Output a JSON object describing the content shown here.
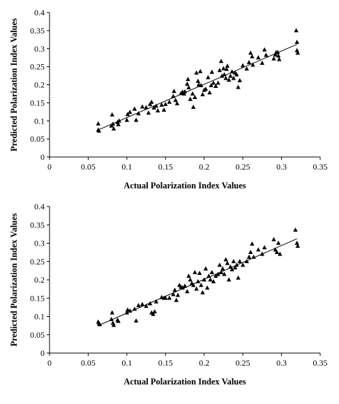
{
  "chart_data": [
    {
      "type": "scatter",
      "title": "",
      "xlabel": "Actual Polarization Index Values",
      "ylabel": "Predicted Polarization Index Values",
      "xlim": [
        0,
        0.35
      ],
      "ylim": [
        0,
        0.4
      ],
      "xticks": [
        "0",
        "0.05",
        "0.1",
        "0.15",
        "0.2",
        "0.25",
        "0.3",
        "0.35"
      ],
      "yticks": [
        "0",
        "0.05",
        "0.1",
        "0.15",
        "0.2",
        "0.25",
        "0.3",
        "0.35",
        "0.4"
      ],
      "marker": "triangle",
      "grid": false,
      "trendline": {
        "x": [
          0.063,
          0.32
        ],
        "y": [
          0.075,
          0.312
        ]
      },
      "series": [
        {
          "points": [
            [
              0.063,
              0.092
            ],
            [
              0.063,
              0.075
            ],
            [
              0.064,
              0.072
            ],
            [
              0.08,
              0.086
            ],
            [
              0.081,
              0.117
            ],
            [
              0.082,
              0.091
            ],
            [
              0.083,
              0.078
            ],
            [
              0.088,
              0.096
            ],
            [
              0.089,
              0.09
            ],
            [
              0.09,
              0.1
            ],
            [
              0.1,
              0.102
            ],
            [
              0.101,
              0.118
            ],
            [
              0.104,
              0.124
            ],
            [
              0.11,
              0.133
            ],
            [
              0.112,
              0.102
            ],
            [
              0.115,
              0.12
            ],
            [
              0.12,
              0.139
            ],
            [
              0.125,
              0.137
            ],
            [
              0.128,
              0.122
            ],
            [
              0.13,
              0.146
            ],
            [
              0.132,
              0.152
            ],
            [
              0.135,
              0.136
            ],
            [
              0.138,
              0.141
            ],
            [
              0.14,
              0.128
            ],
            [
              0.145,
              0.144
            ],
            [
              0.148,
              0.13
            ],
            [
              0.15,
              0.146
            ],
            [
              0.155,
              0.152
            ],
            [
              0.16,
              0.168
            ],
            [
              0.161,
              0.182
            ],
            [
              0.163,
              0.157
            ],
            [
              0.165,
              0.148
            ],
            [
              0.17,
              0.176
            ],
            [
              0.172,
              0.18
            ],
            [
              0.174,
              0.175
            ],
            [
              0.175,
              0.181
            ],
            [
              0.178,
              0.202
            ],
            [
              0.179,
              0.215
            ],
            [
              0.18,
              0.192
            ],
            [
              0.182,
              0.16
            ],
            [
              0.185,
              0.175
            ],
            [
              0.186,
              0.138
            ],
            [
              0.188,
              0.165
            ],
            [
              0.19,
              0.233
            ],
            [
              0.192,
              0.21
            ],
            [
              0.193,
              0.2
            ],
            [
              0.195,
              0.237
            ],
            [
              0.196,
              0.198
            ],
            [
              0.198,
              0.173
            ],
            [
              0.2,
              0.185
            ],
            [
              0.202,
              0.188
            ],
            [
              0.205,
              0.22
            ],
            [
              0.207,
              0.178
            ],
            [
              0.209,
              0.198
            ],
            [
              0.21,
              0.235
            ],
            [
              0.212,
              0.205
            ],
            [
              0.215,
              0.196
            ],
            [
              0.218,
              0.205
            ],
            [
              0.22,
              0.24
            ],
            [
              0.222,
              0.265
            ],
            [
              0.223,
              0.224
            ],
            [
              0.225,
              0.245
            ],
            [
              0.226,
              0.228
            ],
            [
              0.228,
              0.218
            ],
            [
              0.229,
              0.243
            ],
            [
              0.23,
              0.252
            ],
            [
              0.232,
              0.213
            ],
            [
              0.234,
              0.224
            ],
            [
              0.236,
              0.236
            ],
            [
              0.238,
              0.218
            ],
            [
              0.24,
              0.233
            ],
            [
              0.242,
              0.228
            ],
            [
              0.244,
              0.193
            ],
            [
              0.246,
              0.212
            ],
            [
              0.25,
              0.253
            ],
            [
              0.255,
              0.244
            ],
            [
              0.258,
              0.262
            ],
            [
              0.26,
              0.288
            ],
            [
              0.262,
              0.278
            ],
            [
              0.263,
              0.255
            ],
            [
              0.27,
              0.275
            ],
            [
              0.275,
              0.26
            ],
            [
              0.278,
              0.297
            ],
            [
              0.28,
              0.282
            ],
            [
              0.29,
              0.272
            ],
            [
              0.292,
              0.283
            ],
            [
              0.293,
              0.289
            ],
            [
              0.295,
              0.29
            ],
            [
              0.296,
              0.28
            ],
            [
              0.297,
              0.27
            ],
            [
              0.319,
              0.35
            ],
            [
              0.32,
              0.318
            ],
            [
              0.32,
              0.295
            ],
            [
              0.321,
              0.288
            ]
          ]
        }
      ]
    },
    {
      "type": "scatter",
      "title": "",
      "xlabel": "Actual Polarization Index Values",
      "ylabel": "Predicted Polarization Index Values",
      "xlim": [
        0,
        0.35
      ],
      "ylim": [
        0,
        0.4
      ],
      "xticks": [
        "0",
        "0.05",
        "0.1",
        "0.15",
        "0.2",
        "0.25",
        "0.3",
        "0.35"
      ],
      "yticks": [
        "0",
        "0.05",
        "0.1",
        "0.15",
        "0.2",
        "0.25",
        "0.3",
        "0.35",
        "0.4"
      ],
      "marker": "triangle",
      "grid": false,
      "trendline": {
        "x": [
          0.063,
          0.32
        ],
        "y": [
          0.075,
          0.312
        ]
      },
      "series": [
        {
          "points": [
            [
              0.063,
              0.085
            ],
            [
              0.064,
              0.08
            ],
            [
              0.065,
              0.078
            ],
            [
              0.08,
              0.092
            ],
            [
              0.081,
              0.11
            ],
            [
              0.082,
              0.082
            ],
            [
              0.083,
              0.076
            ],
            [
              0.088,
              0.09
            ],
            [
              0.089,
              0.087
            ],
            [
              0.1,
              0.11
            ],
            [
              0.101,
              0.118
            ],
            [
              0.104,
              0.115
            ],
            [
              0.11,
              0.12
            ],
            [
              0.112,
              0.088
            ],
            [
              0.115,
              0.13
            ],
            [
              0.12,
              0.133
            ],
            [
              0.125,
              0.128
            ],
            [
              0.13,
              0.135
            ],
            [
              0.132,
              0.11
            ],
            [
              0.134,
              0.106
            ],
            [
              0.136,
              0.113
            ],
            [
              0.138,
              0.14
            ],
            [
              0.145,
              0.152
            ],
            [
              0.148,
              0.15
            ],
            [
              0.15,
              0.15
            ],
            [
              0.155,
              0.15
            ],
            [
              0.16,
              0.16
            ],
            [
              0.162,
              0.172
            ],
            [
              0.164,
              0.144
            ],
            [
              0.166,
              0.158
            ],
            [
              0.168,
              0.185
            ],
            [
              0.17,
              0.18
            ],
            [
              0.172,
              0.178
            ],
            [
              0.175,
              0.183
            ],
            [
              0.178,
              0.168
            ],
            [
              0.18,
              0.21
            ],
            [
              0.182,
              0.2
            ],
            [
              0.184,
              0.19
            ],
            [
              0.186,
              0.185
            ],
            [
              0.188,
              0.22
            ],
            [
              0.19,
              0.175
            ],
            [
              0.192,
              0.195
            ],
            [
              0.194,
              0.218
            ],
            [
              0.196,
              0.185
            ],
            [
              0.198,
              0.165
            ],
            [
              0.2,
              0.2
            ],
            [
              0.202,
              0.23
            ],
            [
              0.204,
              0.178
            ],
            [
              0.206,
              0.21
            ],
            [
              0.208,
              0.2
            ],
            [
              0.21,
              0.22
            ],
            [
              0.212,
              0.195
            ],
            [
              0.215,
              0.21
            ],
            [
              0.218,
              0.215
            ],
            [
              0.22,
              0.24
            ],
            [
              0.222,
              0.22
            ],
            [
              0.224,
              0.23
            ],
            [
              0.226,
              0.215
            ],
            [
              0.228,
              0.255
            ],
            [
              0.23,
              0.245
            ],
            [
              0.232,
              0.2
            ],
            [
              0.234,
              0.235
            ],
            [
              0.236,
              0.228
            ],
            [
              0.238,
              0.25
            ],
            [
              0.24,
              0.233
            ],
            [
              0.242,
              0.24
            ],
            [
              0.244,
              0.205
            ],
            [
              0.246,
              0.25
            ],
            [
              0.25,
              0.24
            ],
            [
              0.255,
              0.25
            ],
            [
              0.258,
              0.262
            ],
            [
              0.26,
              0.275
            ],
            [
              0.262,
              0.298
            ],
            [
              0.264,
              0.262
            ],
            [
              0.27,
              0.282
            ],
            [
              0.275,
              0.27
            ],
            [
              0.278,
              0.288
            ],
            [
              0.29,
              0.31
            ],
            [
              0.292,
              0.282
            ],
            [
              0.294,
              0.275
            ],
            [
              0.296,
              0.3
            ],
            [
              0.298,
              0.27
            ],
            [
              0.318,
              0.336
            ],
            [
              0.32,
              0.3
            ],
            [
              0.321,
              0.292
            ]
          ]
        }
      ]
    }
  ]
}
